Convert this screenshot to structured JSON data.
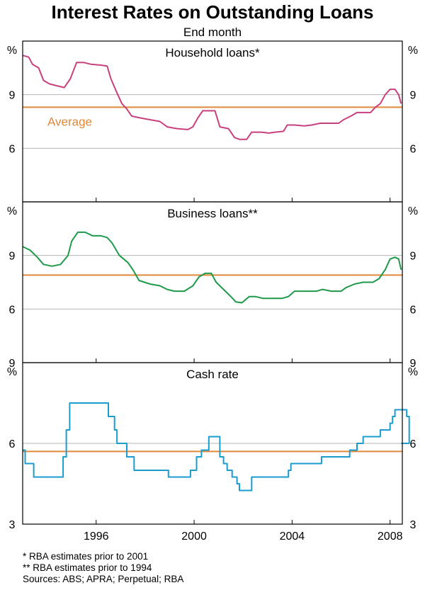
{
  "title": "Interest Rates on Outstanding Loans",
  "subtitle": "End month",
  "footnotes": [
    "*    RBA estimates prior to 2001",
    "**  RBA estimates prior to 1994",
    "Sources: ABS; APRA; Perpetual; RBA"
  ],
  "colors": {
    "household": "#c8407e",
    "business": "#1e9a4a",
    "cash": "#1a9ccf",
    "average": "#e0893a",
    "grid": "#b4b4b4",
    "frame": "#000000"
  },
  "chart_data": {
    "type": "line",
    "x_unit": "year",
    "xlim": [
      1993.0,
      2008.5
    ],
    "x_ticks": [
      1996,
      2000,
      2004,
      2008
    ],
    "x_tick_labels": [
      "1996",
      "2000",
      "2004",
      "2008"
    ],
    "panels": [
      {
        "title": "Household loans*",
        "unit": "%",
        "ylim": [
          3,
          12
        ],
        "y_ticks": [
          6,
          9
        ],
        "y_tick_labels": [
          "6",
          "9"
        ],
        "series": [
          {
            "color_key": "household",
            "step": false,
            "points": [
              [
                1993.0,
                11.2
              ],
              [
                1993.25,
                11.1
              ],
              [
                1993.4,
                10.7
              ],
              [
                1993.65,
                10.5
              ],
              [
                1993.85,
                9.8
              ],
              [
                1994.1,
                9.6
              ],
              [
                1994.4,
                9.5
              ],
              [
                1994.7,
                9.4
              ],
              [
                1994.95,
                9.9
              ],
              [
                1995.2,
                10.8
              ],
              [
                1995.5,
                10.8
              ],
              [
                1995.8,
                10.7
              ],
              [
                1996.2,
                10.65
              ],
              [
                1996.45,
                10.6
              ],
              [
                1996.6,
                9.9
              ],
              [
                1996.85,
                9.1
              ],
              [
                1997.05,
                8.5
              ],
              [
                1997.25,
                8.2
              ],
              [
                1997.45,
                7.8
              ],
              [
                1997.8,
                7.7
              ],
              [
                1998.2,
                7.6
              ],
              [
                1998.6,
                7.5
              ],
              [
                1998.9,
                7.2
              ],
              [
                1999.3,
                7.1
              ],
              [
                1999.75,
                7.05
              ],
              [
                1999.95,
                7.2
              ],
              [
                2000.15,
                7.7
              ],
              [
                2000.35,
                8.1
              ],
              [
                2000.65,
                8.1
              ],
              [
                2000.85,
                8.1
              ],
              [
                2001.05,
                7.2
              ],
              [
                2001.4,
                7.1
              ],
              [
                2001.65,
                6.6
              ],
              [
                2001.85,
                6.5
              ],
              [
                2002.15,
                6.5
              ],
              [
                2002.35,
                6.9
              ],
              [
                2002.75,
                6.9
              ],
              [
                2003.05,
                6.85
              ],
              [
                2003.3,
                6.9
              ],
              [
                2003.65,
                6.95
              ],
              [
                2003.8,
                7.3
              ],
              [
                2004.1,
                7.3
              ],
              [
                2004.5,
                7.25
              ],
              [
                2004.8,
                7.3
              ],
              [
                2005.15,
                7.4
              ],
              [
                2005.6,
                7.4
              ],
              [
                2005.9,
                7.4
              ],
              [
                2006.1,
                7.6
              ],
              [
                2006.4,
                7.8
              ],
              [
                2006.65,
                8.0
              ],
              [
                2006.95,
                8.0
              ],
              [
                2007.2,
                8.0
              ],
              [
                2007.4,
                8.3
              ],
              [
                2007.6,
                8.5
              ],
              [
                2007.8,
                9.0
              ],
              [
                2008.0,
                9.3
              ],
              [
                2008.2,
                9.3
              ],
              [
                2008.35,
                9.0
              ],
              [
                2008.45,
                8.5
              ]
            ]
          }
        ],
        "average": 8.3,
        "average_label": "Average"
      },
      {
        "title": "Business loans**",
        "unit": "%",
        "ylim": [
          3,
          12
        ],
        "y_ticks": [
          6,
          9
        ],
        "y_tick_labels": [
          "6",
          "9"
        ],
        "series": [
          {
            "color_key": "business",
            "step": false,
            "points": [
              [
                1993.0,
                9.5
              ],
              [
                1993.3,
                9.3
              ],
              [
                1993.6,
                8.9
              ],
              [
                1993.85,
                8.5
              ],
              [
                1994.2,
                8.4
              ],
              [
                1994.55,
                8.5
              ],
              [
                1994.85,
                9.0
              ],
              [
                1995.0,
                9.8
              ],
              [
                1995.25,
                10.3
              ],
              [
                1995.55,
                10.3
              ],
              [
                1995.85,
                10.1
              ],
              [
                1996.2,
                10.1
              ],
              [
                1996.45,
                10.0
              ],
              [
                1996.65,
                9.7
              ],
              [
                1996.95,
                9.0
              ],
              [
                1997.3,
                8.6
              ],
              [
                1997.5,
                8.2
              ],
              [
                1997.75,
                7.6
              ],
              [
                1998.2,
                7.4
              ],
              [
                1998.6,
                7.3
              ],
              [
                1998.9,
                7.1
              ],
              [
                1999.2,
                7.0
              ],
              [
                1999.6,
                7.0
              ],
              [
                1999.95,
                7.3
              ],
              [
                2000.2,
                7.8
              ],
              [
                2000.45,
                8.0
              ],
              [
                2000.7,
                8.0
              ],
              [
                2000.9,
                7.5
              ],
              [
                2001.2,
                7.1
              ],
              [
                2001.5,
                6.7
              ],
              [
                2001.7,
                6.4
              ],
              [
                2001.95,
                6.35
              ],
              [
                2002.25,
                6.7
              ],
              [
                2002.5,
                6.7
              ],
              [
                2002.8,
                6.6
              ],
              [
                2003.2,
                6.6
              ],
              [
                2003.6,
                6.6
              ],
              [
                2003.85,
                6.7
              ],
              [
                2004.1,
                7.0
              ],
              [
                2004.6,
                7.0
              ],
              [
                2005.0,
                7.0
              ],
              [
                2005.25,
                7.1
              ],
              [
                2005.6,
                7.0
              ],
              [
                2006.0,
                7.0
              ],
              [
                2006.2,
                7.2
              ],
              [
                2006.55,
                7.4
              ],
              [
                2006.9,
                7.5
              ],
              [
                2007.3,
                7.5
              ],
              [
                2007.55,
                7.7
              ],
              [
                2007.8,
                8.2
              ],
              [
                2008.0,
                8.8
              ],
              [
                2008.2,
                8.9
              ],
              [
                2008.35,
                8.8
              ],
              [
                2008.45,
                8.2
              ]
            ]
          }
        ],
        "average": 7.9
      },
      {
        "title": "Cash rate",
        "unit": "%",
        "ylim": [
          3,
          9
        ],
        "y_ticks": [
          3,
          6,
          9
        ],
        "y_tick_labels": [
          "3",
          "6",
          "9"
        ],
        "series": [
          {
            "color_key": "cash",
            "step": true,
            "points": [
              [
                1993.0,
                5.75
              ],
              [
                1993.1,
                5.25
              ],
              [
                1993.45,
                4.75
              ],
              [
                1994.65,
                5.5
              ],
              [
                1994.78,
                6.5
              ],
              [
                1994.92,
                7.5
              ],
              [
                1996.5,
                7.0
              ],
              [
                1996.75,
                6.5
              ],
              [
                1996.85,
                6.0
              ],
              [
                1997.25,
                5.5
              ],
              [
                1997.55,
                5.0
              ],
              [
                1998.95,
                4.75
              ],
              [
                1999.85,
                5.0
              ],
              [
                2000.1,
                5.5
              ],
              [
                2000.3,
                5.75
              ],
              [
                2000.6,
                6.25
              ],
              [
                2001.05,
                5.5
              ],
              [
                2001.2,
                5.25
              ],
              [
                2001.35,
                5.0
              ],
              [
                2001.55,
                4.75
              ],
              [
                2001.75,
                4.5
              ],
              [
                2001.85,
                4.25
              ],
              [
                2002.35,
                4.75
              ],
              [
                2003.85,
                5.0
              ],
              [
                2003.95,
                5.25
              ],
              [
                2005.2,
                5.5
              ],
              [
                2006.35,
                5.75
              ],
              [
                2006.65,
                6.0
              ],
              [
                2006.9,
                6.25
              ],
              [
                2007.6,
                6.5
              ],
              [
                2008.0,
                6.75
              ],
              [
                2008.1,
                7.0
              ],
              [
                2008.2,
                7.25
              ],
              [
                2008.68,
                7.0
              ],
              [
                2008.78,
                6.0
              ]
            ]
          }
        ],
        "average": 5.7
      }
    ]
  }
}
